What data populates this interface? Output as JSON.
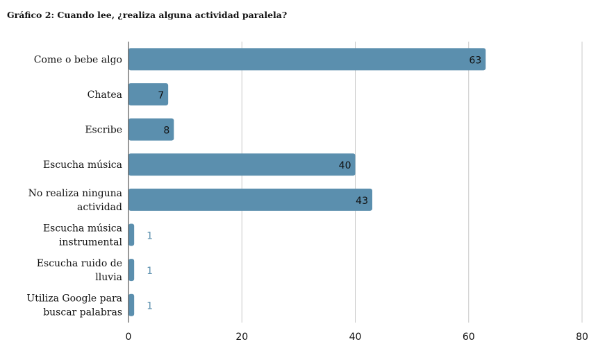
{
  "chart_data": {
    "type": "bar",
    "orientation": "horizontal",
    "title": "Gráfico 2: Cuando lee, ¿realiza alguna actividad paralela?",
    "categories": [
      [
        "Come o bebe algo"
      ],
      [
        "Chatea"
      ],
      [
        "Escribe"
      ],
      [
        "Escucha música"
      ],
      [
        "No realiza ninguna",
        "actividad"
      ],
      [
        "Escucha música",
        "instrumental"
      ],
      [
        "Escucha ruido de",
        "lluvia"
      ],
      [
        "Utiliza Google para",
        "buscar palabras"
      ]
    ],
    "values": [
      63,
      7,
      8,
      40,
      43,
      1,
      1,
      1
    ],
    "xlim": [
      0,
      80
    ],
    "xticks": [
      0,
      20,
      40,
      60,
      80
    ],
    "grid": true,
    "bar_color": "#5b8fae",
    "label_color_inside": "#111111",
    "label_color_outside": "#5b8fae"
  }
}
